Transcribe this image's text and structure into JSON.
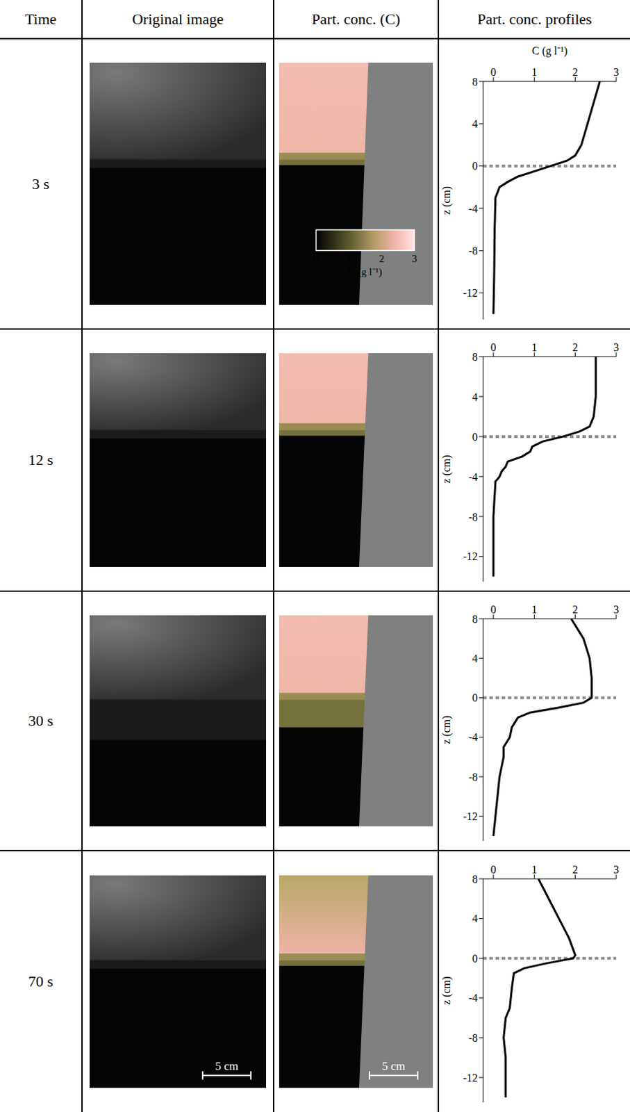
{
  "table": {
    "header": [
      "Time",
      "Original image",
      "Part. conc. (C)",
      "Part. conc. profiles"
    ],
    "rows": [
      "3 s",
      "12 s",
      "30 s",
      "70 s"
    ]
  },
  "colorbar": {
    "label": "C (g l⁻¹)",
    "lim": [
      0,
      3
    ],
    "ticks": [
      0,
      1,
      2,
      3
    ]
  },
  "scale_bar": "5 cm",
  "chart_data": [
    {
      "type": "line",
      "x_label": "C (g l⁻¹)",
      "y_label": "z (cm)",
      "color": "#000000",
      "hline": 0,
      "x": [
        2.6,
        2.45,
        2.3,
        2.15,
        2.0,
        1.8,
        1.4,
        1.0,
        0.6,
        0.35,
        0.15,
        0.05,
        0.03,
        0.02,
        0.0
      ],
      "values": [
        8,
        6,
        4,
        2,
        1,
        0.5,
        0,
        -0.5,
        -1,
        -1.5,
        -2,
        -3,
        -6,
        -10,
        -14
      ],
      "xlim": [
        -0.25,
        3
      ],
      "xticks": [
        0,
        1,
        2,
        3
      ],
      "ylim": [
        -14.5,
        8
      ],
      "yticks": [
        8,
        4,
        0,
        -4,
        -8,
        -12
      ]
    },
    {
      "type": "line",
      "y_label": "z (cm)",
      "color": "#000000",
      "hline": 0,
      "x": [
        2.5,
        2.5,
        2.45,
        2.35,
        2.1,
        1.7,
        1.2,
        0.95,
        0.9,
        0.7,
        0.35,
        0.3,
        0.2,
        0.15,
        0.05,
        0.0,
        0.0
      ],
      "values": [
        8,
        4,
        2,
        1,
        0.5,
        0,
        -0.5,
        -1,
        -1.5,
        -2,
        -2.5,
        -3,
        -3.5,
        -4,
        -4.5,
        -8,
        -14
      ],
      "xlim": [
        -0.25,
        3
      ],
      "xticks": [
        0,
        1,
        2,
        3
      ],
      "ylim": [
        -14.5,
        8
      ],
      "yticks": [
        8,
        4,
        0,
        -4,
        -8,
        -12
      ]
    },
    {
      "type": "line",
      "y_label": "z (cm)",
      "color": "#000000",
      "hline": 0,
      "x": [
        1.9,
        2.2,
        2.35,
        2.4,
        2.4,
        2.2,
        1.6,
        0.9,
        0.6,
        0.45,
        0.4,
        0.25,
        0.25,
        0.15,
        0.1,
        0.05,
        0.0
      ],
      "values": [
        8,
        6,
        4,
        2,
        0,
        -0.5,
        -1,
        -1.5,
        -2,
        -3,
        -4,
        -5,
        -6,
        -8,
        -10,
        -12,
        -14
      ],
      "xlim": [
        -0.25,
        3
      ],
      "xticks": [
        0,
        1,
        2,
        3
      ],
      "ylim": [
        -14.5,
        8
      ],
      "yticks": [
        8,
        4,
        0,
        -4,
        -8,
        -12
      ]
    },
    {
      "type": "line",
      "y_label": "z (cm)",
      "color": "#000000",
      "hline": 0,
      "x": [
        1.1,
        1.35,
        1.6,
        1.85,
        2.0,
        1.95,
        1.3,
        0.75,
        0.5,
        0.45,
        0.4,
        0.3,
        0.25,
        0.3,
        0.3,
        0.3
      ],
      "values": [
        8,
        6,
        4,
        2,
        0.3,
        0,
        -0.5,
        -1,
        -1.5,
        -3,
        -5,
        -6,
        -8,
        -10,
        -12,
        -14
      ],
      "xlim": [
        -0.25,
        3
      ],
      "xticks": [
        0,
        1,
        2,
        3
      ],
      "ylim": [
        -14.5,
        8
      ],
      "yticks": [
        8,
        4,
        0,
        -4,
        -8,
        -12
      ]
    }
  ]
}
